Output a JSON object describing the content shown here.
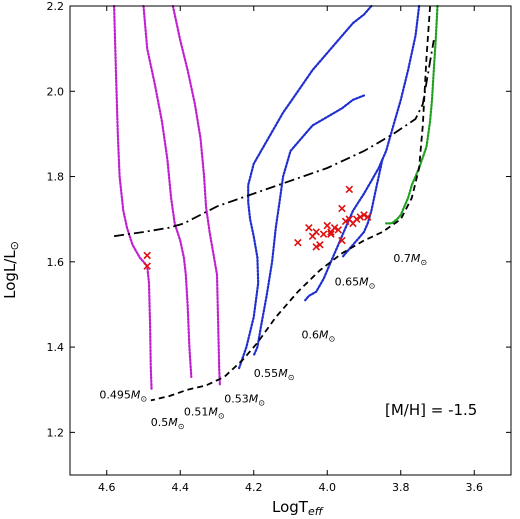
{
  "chart_data": {
    "type": "scatter",
    "x_axis_reversed": true,
    "xlim": [
      4.7,
      3.5
    ],
    "ylim": [
      1.1,
      2.2
    ],
    "xticks": [
      4.6,
      4.4,
      4.2,
      4.0,
      3.8,
      3.6
    ],
    "yticks": [
      1.2,
      1.4,
      1.6,
      1.8,
      2.0,
      2.2
    ],
    "xtick_labels": [
      "4.6",
      "4.4",
      "4.2",
      "4.0",
      "3.8",
      "3.6"
    ],
    "ytick_labels": [
      "1.2",
      "1.4",
      "1.6",
      "1.8",
      "2.0",
      "2.2"
    ],
    "xlabel_main": "LogT",
    "xlabel_sub": "eff",
    "ylabel_main": "LogL/L",
    "ylabel_sym": "⊙",
    "annotation": "[M/H] = -1.5",
    "grid": false,
    "tracks": [
      {
        "color": "#c020d0",
        "points": [
          [
            4.58,
            2.2
          ],
          [
            4.575,
            2.05
          ],
          [
            4.57,
            1.9
          ],
          [
            4.565,
            1.8
          ],
          [
            4.555,
            1.72
          ],
          [
            4.545,
            1.68
          ],
          [
            4.53,
            1.64
          ],
          [
            4.51,
            1.61
          ],
          [
            4.5,
            1.6
          ],
          [
            4.49,
            1.59
          ],
          [
            4.485,
            1.55
          ],
          [
            4.482,
            1.45
          ],
          [
            4.48,
            1.35
          ],
          [
            4.478,
            1.3
          ]
        ]
      },
      {
        "color": "#c020d0",
        "points": [
          [
            4.5,
            2.2
          ],
          [
            4.49,
            2.1
          ],
          [
            4.47,
            2.02
          ],
          [
            4.45,
            1.93
          ],
          [
            4.435,
            1.84
          ],
          [
            4.425,
            1.75
          ],
          [
            4.415,
            1.69
          ],
          [
            4.4,
            1.65
          ],
          [
            4.39,
            1.61
          ],
          [
            4.385,
            1.57
          ],
          [
            4.38,
            1.5
          ],
          [
            4.375,
            1.4
          ],
          [
            4.37,
            1.33
          ]
        ]
      },
      {
        "color": "#c020d0",
        "points": [
          [
            4.42,
            2.2
          ],
          [
            4.4,
            2.12
          ],
          [
            4.38,
            2.05
          ],
          [
            4.36,
            1.97
          ],
          [
            4.345,
            1.89
          ],
          [
            4.335,
            1.8
          ],
          [
            4.33,
            1.73
          ],
          [
            4.32,
            1.67
          ],
          [
            4.31,
            1.62
          ],
          [
            4.3,
            1.57
          ],
          [
            4.298,
            1.5
          ],
          [
            4.296,
            1.42
          ],
          [
            4.294,
            1.35
          ],
          [
            4.292,
            1.31
          ]
        ]
      },
      {
        "color": "#2030d0",
        "points": [
          [
            3.88,
            2.2
          ],
          [
            3.9,
            2.18
          ],
          [
            3.93,
            2.16
          ],
          [
            3.96,
            2.13
          ],
          [
            4.0,
            2.09
          ],
          [
            4.04,
            2.05
          ],
          [
            4.08,
            2.0
          ],
          [
            4.12,
            1.95
          ],
          [
            4.16,
            1.89
          ],
          [
            4.2,
            1.83
          ],
          [
            4.215,
            1.78
          ],
          [
            4.215,
            1.74
          ],
          [
            4.21,
            1.7
          ],
          [
            4.2,
            1.66
          ],
          [
            4.19,
            1.61
          ],
          [
            4.188,
            1.55
          ],
          [
            4.2,
            1.47
          ],
          [
            4.22,
            1.4
          ],
          [
            4.24,
            1.35
          ]
        ]
      },
      {
        "color": "#2030d0",
        "points": [
          [
            3.9,
            1.99
          ],
          [
            3.93,
            1.98
          ],
          [
            3.96,
            1.96
          ],
          [
            4.0,
            1.94
          ],
          [
            4.04,
            1.92
          ],
          [
            4.07,
            1.89
          ],
          [
            4.1,
            1.86
          ],
          [
            4.12,
            1.8
          ],
          [
            4.13,
            1.74
          ],
          [
            4.14,
            1.68
          ],
          [
            4.15,
            1.6
          ],
          [
            4.165,
            1.52
          ],
          [
            4.18,
            1.45
          ],
          [
            4.19,
            1.4
          ],
          [
            4.2,
            1.38
          ]
        ]
      },
      {
        "color": "#2030d0",
        "points": [
          [
            3.75,
            2.2
          ],
          [
            3.76,
            2.13
          ],
          [
            3.78,
            2.05
          ],
          [
            3.8,
            1.98
          ],
          [
            3.82,
            1.92
          ],
          [
            3.84,
            1.86
          ],
          [
            3.86,
            1.82
          ],
          [
            3.88,
            1.79
          ],
          [
            3.9,
            1.76
          ],
          [
            3.93,
            1.72
          ],
          [
            3.95,
            1.68
          ],
          [
            3.97,
            1.64
          ],
          [
            3.99,
            1.6
          ],
          [
            4.01,
            1.56
          ],
          [
            4.03,
            1.53
          ],
          [
            4.05,
            1.52
          ],
          [
            4.06,
            1.51
          ]
        ]
      },
      {
        "color": "#2030d0",
        "points": [
          [
            3.85,
            1.84
          ],
          [
            3.86,
            1.8
          ],
          [
            3.87,
            1.76
          ],
          [
            3.88,
            1.72
          ],
          [
            3.89,
            1.69
          ],
          [
            3.9,
            1.67
          ],
          [
            3.92,
            1.65
          ],
          [
            3.94,
            1.63
          ],
          [
            3.96,
            1.61
          ]
        ]
      },
      {
        "color": "#20a020",
        "points": [
          [
            3.7,
            2.2
          ],
          [
            3.705,
            2.12
          ],
          [
            3.71,
            2.05
          ],
          [
            3.715,
            1.98
          ],
          [
            3.72,
            1.93
          ],
          [
            3.73,
            1.87
          ],
          [
            3.75,
            1.82
          ],
          [
            3.77,
            1.78
          ],
          [
            3.78,
            1.75
          ],
          [
            3.79,
            1.73
          ],
          [
            3.8,
            1.71
          ],
          [
            3.81,
            1.7
          ],
          [
            3.825,
            1.69
          ],
          [
            3.84,
            1.69
          ]
        ]
      }
    ],
    "dashdot_line": [
      [
        4.58,
        1.66
      ],
      [
        4.5,
        1.67
      ],
      [
        4.43,
        1.68
      ],
      [
        4.39,
        1.69
      ],
      [
        4.3,
        1.73
      ],
      [
        4.2,
        1.76
      ],
      [
        4.1,
        1.79
      ],
      [
        4.0,
        1.82
      ],
      [
        3.9,
        1.86
      ],
      [
        3.82,
        1.9
      ],
      [
        3.76,
        1.935
      ],
      [
        3.74,
        1.97
      ],
      [
        3.72,
        2.07
      ],
      [
        3.71,
        2.12
      ]
    ],
    "dashed_line": [
      [
        3.72,
        2.2
      ],
      [
        3.73,
        2.08
      ],
      [
        3.74,
        1.92
      ],
      [
        3.75,
        1.82
      ],
      [
        3.77,
        1.75
      ],
      [
        3.8,
        1.7
      ],
      [
        3.85,
        1.67
      ],
      [
        3.9,
        1.65
      ],
      [
        3.96,
        1.62
      ],
      [
        4.02,
        1.58
      ],
      [
        4.08,
        1.53
      ],
      [
        4.14,
        1.47
      ],
      [
        4.19,
        1.41
      ],
      [
        4.23,
        1.37
      ],
      [
        4.28,
        1.33
      ],
      [
        4.33,
        1.31
      ],
      [
        4.38,
        1.3
      ],
      [
        4.43,
        1.285
      ],
      [
        4.48,
        1.275
      ]
    ],
    "observed_points": [
      [
        4.49,
        1.615
      ],
      [
        4.49,
        1.59
      ],
      [
        4.08,
        1.645
      ],
      [
        4.05,
        1.68
      ],
      [
        4.04,
        1.66
      ],
      [
        4.03,
        1.67
      ],
      [
        4.03,
        1.635
      ],
      [
        4.02,
        1.64
      ],
      [
        4.01,
        1.665
      ],
      [
        4.0,
        1.685
      ],
      [
        3.99,
        1.67
      ],
      [
        3.99,
        1.665
      ],
      [
        3.98,
        1.68
      ],
      [
        3.97,
        1.675
      ],
      [
        3.96,
        1.725
      ],
      [
        3.96,
        1.65
      ],
      [
        3.95,
        1.695
      ],
      [
        3.94,
        1.7
      ],
      [
        3.94,
        1.77
      ],
      [
        3.93,
        1.69
      ],
      [
        3.92,
        1.7
      ],
      [
        3.91,
        1.705
      ],
      [
        3.9,
        1.71
      ],
      [
        3.89,
        1.705
      ]
    ],
    "observed_color": "#e01010",
    "mass_labels": [
      {
        "value": "0.495",
        "x": 4.62,
        "y": 1.28
      },
      {
        "value": "0.5",
        "x": 4.48,
        "y": 1.215
      },
      {
        "value": "0.51",
        "x": 4.39,
        "y": 1.24
      },
      {
        "value": "0.53",
        "x": 4.28,
        "y": 1.27
      },
      {
        "value": "0.55",
        "x": 4.2,
        "y": 1.33
      },
      {
        "value": "0.6",
        "x": 4.07,
        "y": 1.42
      },
      {
        "value": "0.65",
        "x": 3.98,
        "y": 1.545
      },
      {
        "value": "0.7",
        "x": 3.82,
        "y": 1.6
      }
    ],
    "mass_unit": "M",
    "mass_sym": "⊙"
  }
}
